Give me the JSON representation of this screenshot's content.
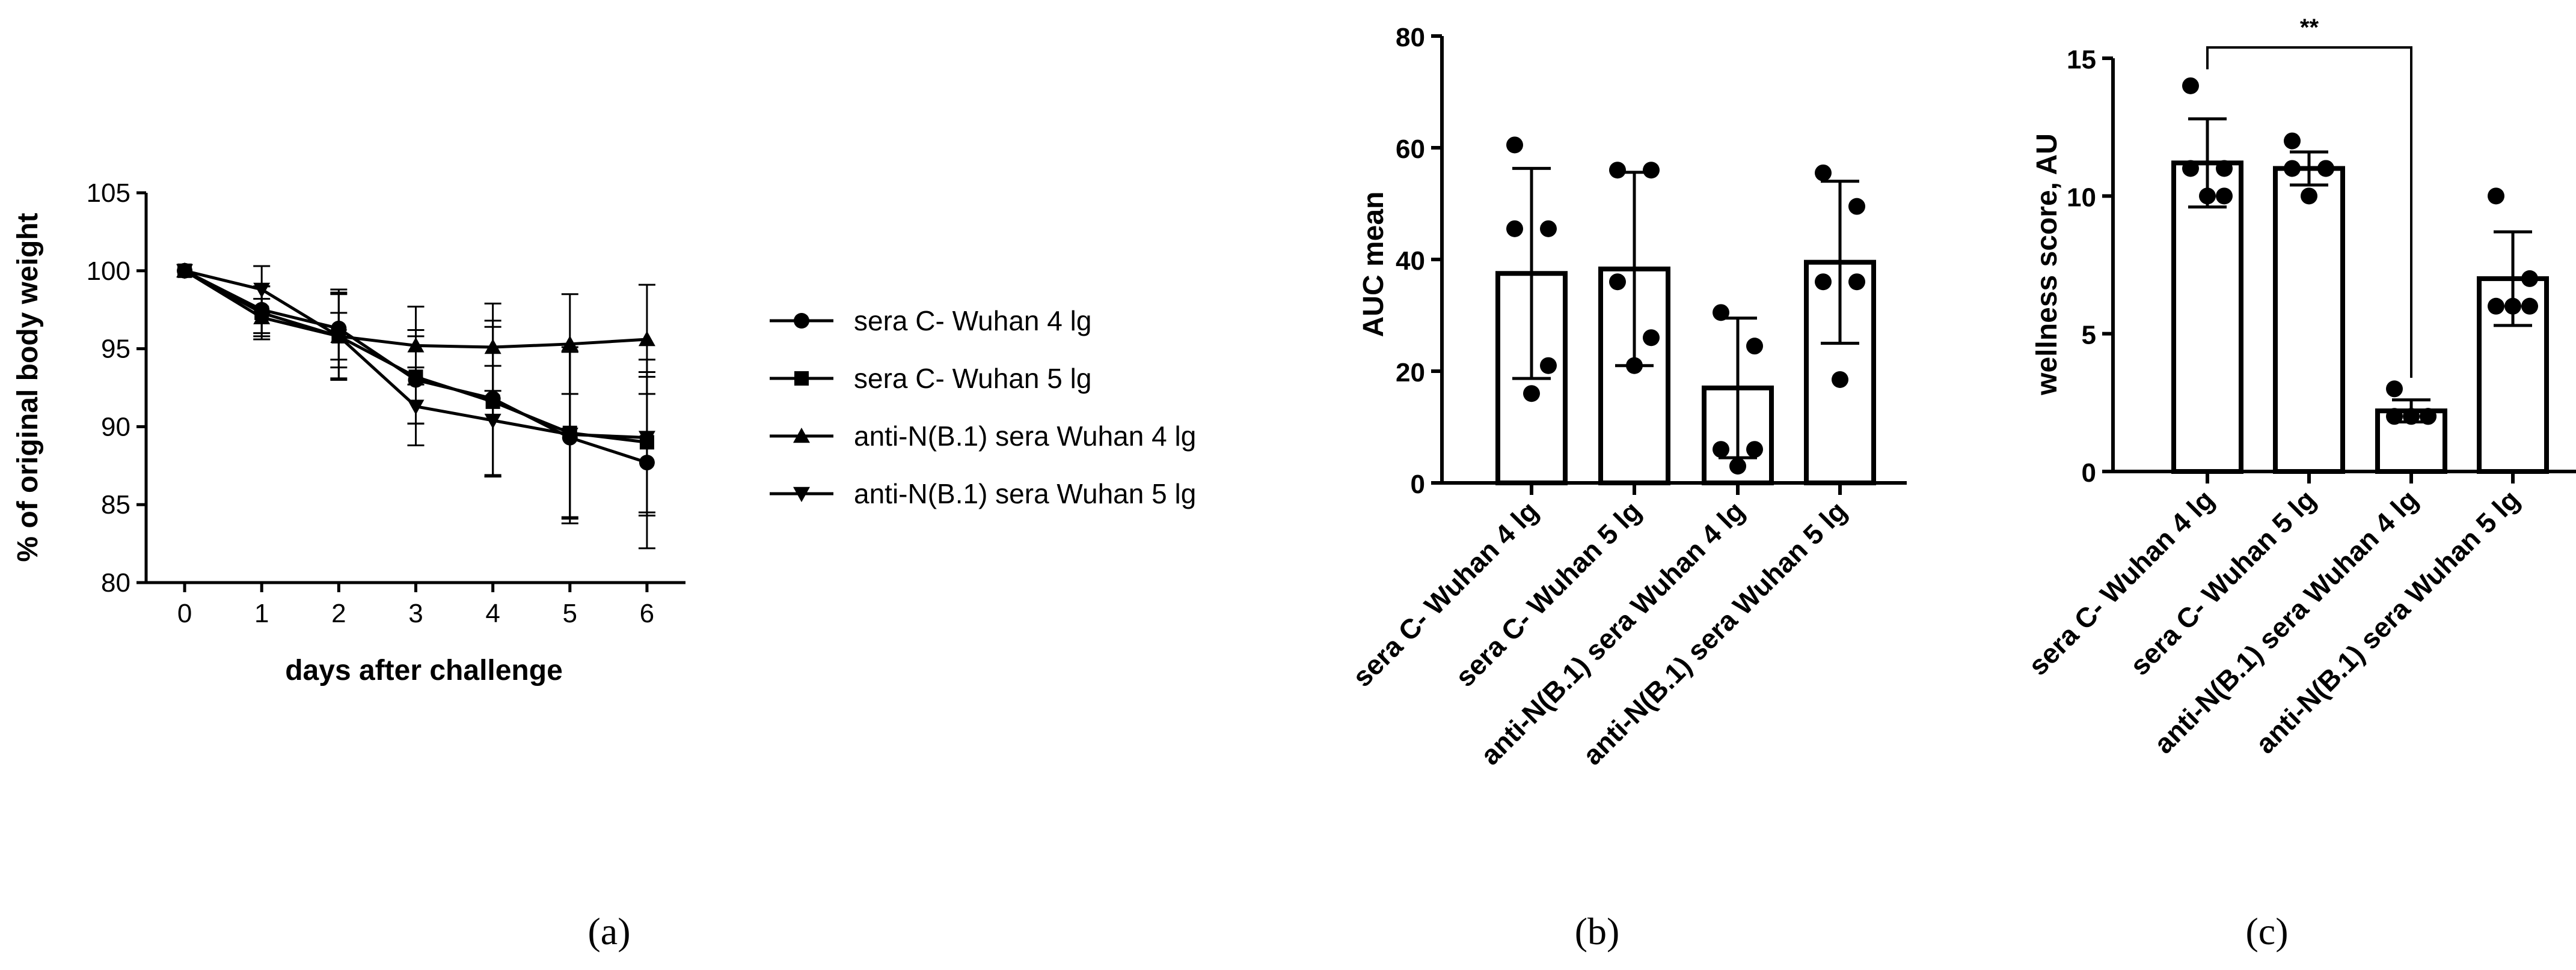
{
  "chart_data": [
    {
      "panel": "(a)",
      "type": "line",
      "title": "",
      "xlabel": "days after challenge",
      "ylabel": "% of original body weight",
      "x": [
        0,
        1,
        2,
        3,
        4,
        5,
        6
      ],
      "xticks": [
        "0",
        "1",
        "2",
        "3",
        "4",
        "5",
        "6"
      ],
      "yticks": [
        "80",
        "85",
        "90",
        "95",
        "100",
        "105"
      ],
      "xlim": [
        -0.5,
        6.5
      ],
      "ylim": [
        80,
        105
      ],
      "legend_position": "right",
      "series": [
        {
          "name": "sera C- Wuhan 4 lg",
          "marker": "circle",
          "values": [
            100,
            97.5,
            96.3,
            93.0,
            91.8,
            89.3,
            87.7
          ],
          "err": [
            0,
            1.5,
            2.5,
            2.8,
            5.0,
            5.5,
            5.5
          ]
        },
        {
          "name": "sera C- Wuhan 5 lg",
          "marker": "square",
          "values": [
            100,
            97.3,
            95.8,
            93.2,
            91.6,
            89.6,
            89.0
          ],
          "err": [
            0,
            1.7,
            2.7,
            3.0,
            4.8,
            5.5,
            4.5
          ]
        },
        {
          "name": "anti-N(B.1) sera Wuhan 4 lg",
          "marker": "triangle-up",
          "values": [
            100,
            97.0,
            95.8,
            95.2,
            95.1,
            95.3,
            95.6
          ],
          "err": [
            0,
            1.2,
            1.5,
            2.5,
            2.8,
            3.2,
            3.5
          ]
        },
        {
          "name": "anti-N(B.1) sera Wuhan 5 lg",
          "marker": "triangle-down",
          "values": [
            100,
            98.8,
            95.8,
            91.3,
            90.4,
            89.5,
            89.3
          ],
          "err": [
            0,
            1.5,
            2.8,
            2.5,
            3.5,
            5.3,
            5.0
          ]
        }
      ]
    },
    {
      "panel": "(b)",
      "type": "bar",
      "title": "",
      "xlabel": "",
      "ylabel": "AUC mean",
      "categories": [
        "sera C- Wuhan 4 lg",
        "sera C- Wuhan 5 lg",
        "anti-N(B.1) sera Wuhan 4 lg",
        "anti-N(B.1) sera Wuhan 5 lg"
      ],
      "values": [
        37.5,
        38.3,
        17.0,
        39.5
      ],
      "sd": [
        18.8,
        17.3,
        12.5,
        14.5
      ],
      "points": [
        [
          60.5,
          45.5,
          45.5,
          21.0,
          16.0
        ],
        [
          56.0,
          56.0,
          36.0,
          26.0,
          21.0
        ],
        [
          30.5,
          24.5,
          6.0,
          6.0,
          3.0
        ],
        [
          55.5,
          49.5,
          36.0,
          36.0,
          18.5
        ]
      ],
      "yticks": [
        "0",
        "20",
        "40",
        "60",
        "80"
      ],
      "ylim": [
        0,
        80
      ]
    },
    {
      "panel": "(c)",
      "type": "bar",
      "title": "",
      "xlabel": "",
      "ylabel": "wellness score, AU",
      "categories": [
        "sera C- Wuhan 4 lg",
        "sera C- Wuhan 5 lg",
        "anti-N(B.1) sera Wuhan 4 lg",
        "anti-N(B.1) sera Wuhan 5 lg"
      ],
      "values": [
        11.2,
        11.0,
        2.2,
        7.0
      ],
      "sd": [
        1.6,
        0.6,
        0.4,
        1.7
      ],
      "points": [
        [
          14,
          11,
          11,
          10,
          10
        ],
        [
          12,
          11,
          11,
          11,
          10
        ],
        [
          3,
          2,
          2,
          2,
          2
        ],
        [
          10,
          7,
          6,
          6,
          6
        ]
      ],
      "yticks": [
        "0",
        "5",
        "10",
        "15"
      ],
      "ylim": [
        0,
        15
      ],
      "significance": {
        "label": "**",
        "from": 0,
        "to": 2
      }
    }
  ]
}
